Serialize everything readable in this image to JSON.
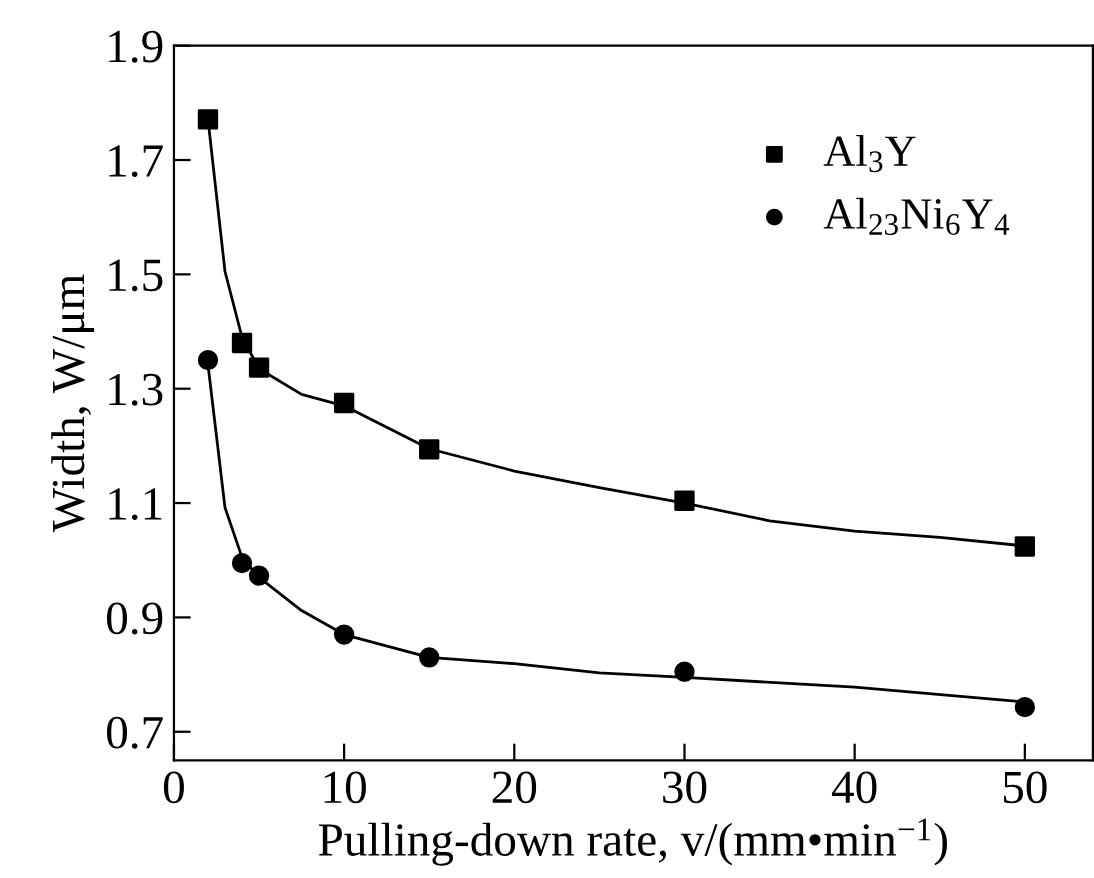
{
  "chart_data": {
    "type": "scatter",
    "xlabel": "Pulling-down rate, v/(mm•min$^{−1}$)",
    "ylabel": "Width, W/μm",
    "xlim": [
      0,
      54
    ],
    "xticks": [
      0,
      10,
      20,
      30,
      40,
      50
    ],
    "ylim": [
      0.65,
      1.9
    ],
    "yticks": [
      0.7,
      0.9,
      1.1,
      1.3,
      1.5,
      1.7,
      1.9
    ],
    "grid": false,
    "legend": "top right",
    "series": [
      {
        "name": "Al$_{3}$Y",
        "color": "#000000",
        "marker": "square",
        "x": [
          2,
          4,
          5,
          10,
          15,
          30,
          50
        ],
        "values": [
          1.771,
          1.38,
          1.337,
          1.275,
          1.194,
          1.104,
          1.024
        ]
      },
      {
        "name": "Al$_{23}$Ni$_{6}$Y$_{4}$",
        "color": "#000000",
        "marker": "circle",
        "x": [
          2,
          4,
          5,
          10,
          15,
          30,
          50
        ],
        "values": [
          1.35,
          0.995,
          0.973,
          0.87,
          0.83,
          0.805,
          0.743
        ]
      },
      {
        "type": "line",
        "color": "#000000",
        "marker": "none",
        "x": [
          2,
          3,
          4,
          5,
          7.5,
          10,
          15,
          20,
          25,
          30,
          35,
          40,
          45,
          50
        ],
        "values": [
          1.771,
          1.505,
          1.39,
          1.335,
          1.29,
          1.27,
          1.195,
          1.156,
          1.127,
          1.1,
          1.069,
          1.051,
          1.04,
          1.025
        ]
      },
      {
        "type": "line",
        "color": "#000000",
        "marker": "none",
        "x": [
          2,
          3,
          4,
          5,
          7.5,
          10,
          15,
          20,
          25,
          30,
          40,
          50
        ],
        "values": [
          1.342,
          1.092,
          1.005,
          0.97,
          0.912,
          0.87,
          0.83,
          0.819,
          0.803,
          0.795,
          0.778,
          0.752
        ]
      }
    ]
  }
}
